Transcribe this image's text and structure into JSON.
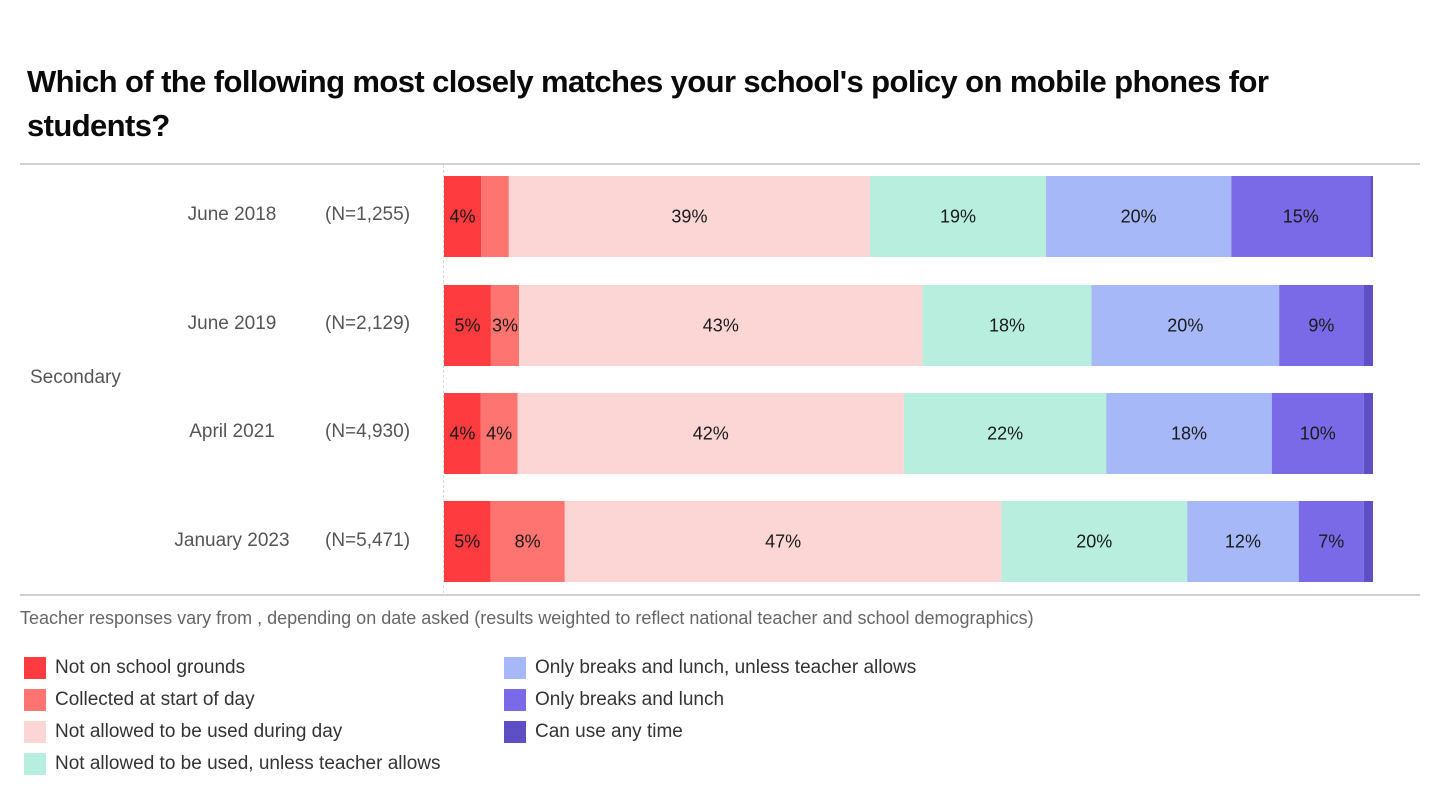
{
  "chart_data": {
    "type": "bar",
    "orientation": "horizontal",
    "stacked": true,
    "percent_stacked": true,
    "title": "Which of the following most closely matches your school's policy on mobile phones for students?",
    "group_label": "Secondary",
    "categories": [
      "June 2018",
      "June 2019",
      "April 2021",
      "January 2023"
    ],
    "sample_sizes": [
      "(N=1,255)",
      "(N=2,129)",
      "(N=4,930)",
      "(N=5,471)"
    ],
    "xlim": [
      0,
      100
    ],
    "grid": false,
    "legend_position": "bottom",
    "series": [
      {
        "name": "Not on school grounds",
        "color": "#fe3c40",
        "values": [
          4,
          5,
          4,
          5
        ],
        "labels": [
          "4%",
          "5%",
          "4%",
          "5%"
        ]
      },
      {
        "name": "Collected at start of day",
        "color": "#fe7470",
        "values": [
          3,
          3,
          4,
          8
        ],
        "labels": [
          "",
          "3%",
          "4%",
          "8%"
        ]
      },
      {
        "name": "Not allowed to be used during day",
        "color": "#fcd6d4",
        "values": [
          39,
          43,
          42,
          47
        ],
        "labels": [
          "39%",
          "43%",
          "42%",
          "47%"
        ]
      },
      {
        "name": "Not allowed to be used, unless teacher allows",
        "color": "#b8eedd",
        "values": [
          19,
          18,
          22,
          20
        ],
        "labels": [
          "19%",
          "18%",
          "22%",
          "20%"
        ]
      },
      {
        "name": "Only breaks and lunch, unless teacher allows",
        "color": "#a7b8f8",
        "values": [
          20,
          20,
          18,
          12
        ],
        "labels": [
          "20%",
          "20%",
          "18%",
          "12%"
        ]
      },
      {
        "name": "Only breaks and lunch",
        "color": "#7b6ae8",
        "values": [
          15,
          9,
          10,
          7
        ],
        "labels": [
          "15%",
          "9%",
          "10%",
          "7%"
        ]
      },
      {
        "name": "Can use any time",
        "color": "#5e50c4",
        "values": [
          0.3,
          1,
          1,
          1
        ],
        "labels": [
          "",
          "",
          "",
          ""
        ]
      }
    ],
    "footnote": "Teacher responses vary from , depending on date asked (results weighted to reflect national teacher and school demographics)"
  }
}
